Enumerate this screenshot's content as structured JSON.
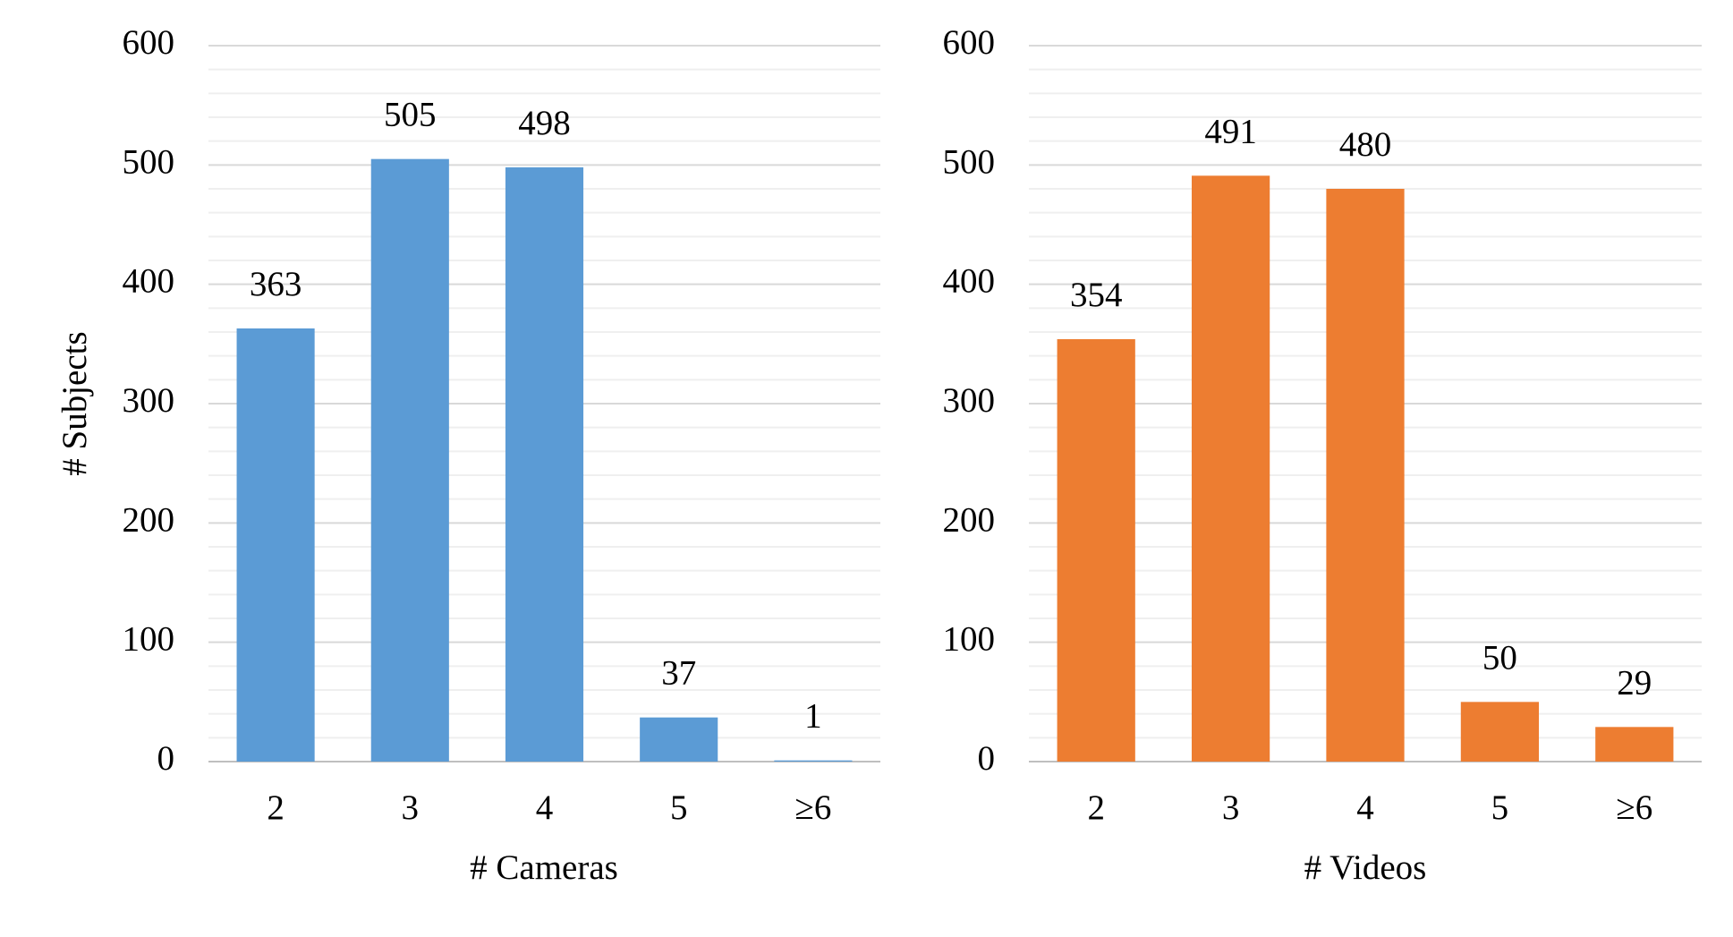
{
  "chart_data": [
    {
      "type": "bar",
      "y_label": "# Subjects",
      "x_label": "# Cameras",
      "categories": [
        "2",
        "3",
        "4",
        "5",
        "≥6"
      ],
      "values": [
        363,
        505,
        498,
        37,
        1
      ],
      "color": "#5b9bd5",
      "ylim": [
        0,
        600
      ],
      "yticks": [
        0,
        100,
        200,
        300,
        400,
        500,
        600
      ],
      "minor_yticks": [
        20,
        40,
        60,
        80,
        120,
        140,
        160,
        180,
        220,
        240,
        260,
        280,
        320,
        340,
        360,
        380,
        420,
        440,
        460,
        480,
        520,
        540,
        560,
        580
      ],
      "grid": true
    },
    {
      "type": "bar",
      "x_label": "# Videos",
      "categories": [
        "2",
        "3",
        "4",
        "5",
        "≥6"
      ],
      "values": [
        354,
        491,
        480,
        50,
        29
      ],
      "color": "#ed7d31",
      "ylim": [
        0,
        600
      ],
      "yticks": [
        0,
        100,
        200,
        300,
        400,
        500,
        600
      ],
      "minor_yticks": [
        20,
        40,
        60,
        80,
        120,
        140,
        160,
        180,
        220,
        240,
        260,
        280,
        320,
        340,
        360,
        380,
        420,
        440,
        460,
        480,
        520,
        540,
        560,
        580
      ],
      "grid": true
    }
  ]
}
